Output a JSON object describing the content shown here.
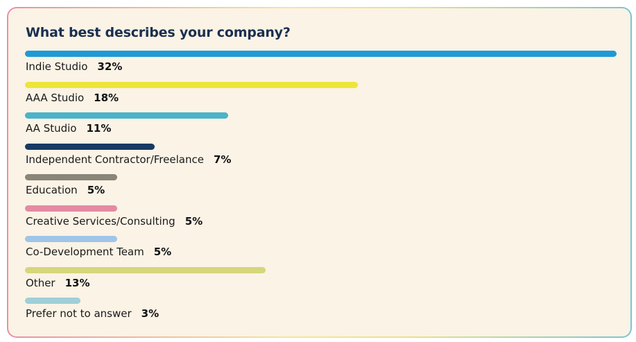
{
  "chart_data": {
    "type": "bar",
    "orientation": "horizontal",
    "title": "What best describes your company?",
    "categories": [
      "Indie Studio",
      "AAA Studio",
      "AA Studio",
      "Independent Contractor/Freelance",
      "Education",
      "Creative Services/Consulting",
      "Co-Development Team",
      "Other",
      "Prefer not to answer"
    ],
    "values": [
      32,
      18,
      11,
      7,
      5,
      5,
      5,
      13,
      3
    ],
    "value_labels": [
      "32%",
      "18%",
      "11%",
      "7%",
      "5%",
      "5%",
      "5%",
      "13%",
      "3%"
    ],
    "colors": [
      "#1f9ad6",
      "#ede53a",
      "#4ab3c9",
      "#173a63",
      "#8a8579",
      "#e58aa3",
      "#9fc5e8",
      "#d6d67a",
      "#9fcfd8"
    ],
    "xlim": [
      0,
      32
    ],
    "grid": false,
    "legend": "none"
  }
}
